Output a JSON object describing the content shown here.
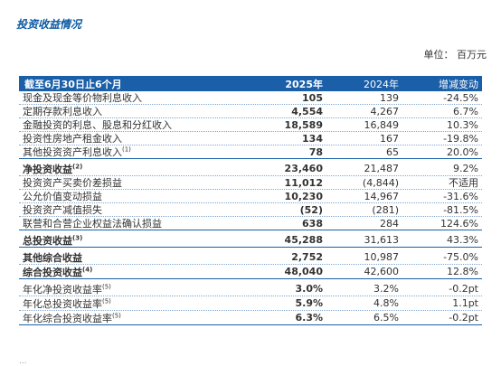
{
  "title": "投资收益情况",
  "unit": "单位： 百万元",
  "header": {
    "label": "截至6月30日止6个月",
    "y1": "2025年",
    "y2": "2024年",
    "chg": "增减变动"
  },
  "rows": [
    {
      "label": "现金及现金等价物利息收入",
      "note": "",
      "y1": "105",
      "y2": "139",
      "chg": "-24.5%"
    },
    {
      "label": "定期存款利息收入",
      "note": "",
      "y1": "4,554",
      "y2": "4,267",
      "chg": "6.7%"
    },
    {
      "label": "金融投资的利息、股息和分红收入",
      "note": "",
      "y1": "18,589",
      "y2": "16,849",
      "chg": "10.3%"
    },
    {
      "label": "投资性房地产租金收入",
      "note": "",
      "y1": "134",
      "y2": "167",
      "chg": "-19.8%"
    },
    {
      "label": "其他投资资产利息收入",
      "note": "(1)",
      "y1": "78",
      "y2": "65",
      "chg": "20.0%"
    },
    {
      "label": "净投资收益",
      "note": "(2)",
      "y1": "23,460",
      "y2": "21,487",
      "chg": "9.2%"
    },
    {
      "label": "投资资产买卖价差损益",
      "note": "",
      "y1": "11,012",
      "y2": "(4,844)",
      "chg": "不适用"
    },
    {
      "label": "公允价值变动损益",
      "note": "",
      "y1": "10,230",
      "y2": "14,967",
      "chg": "-31.6%"
    },
    {
      "label": "投资资产减值损失",
      "note": "",
      "y1": "(52)",
      "y2": "(281)",
      "chg": "-81.5%"
    },
    {
      "label": "联营和合营企业权益法确认损益",
      "note": "",
      "y1": "638",
      "y2": "284",
      "chg": "124.6%"
    },
    {
      "label": "总投资收益",
      "note": "(3)",
      "y1": "45,288",
      "y2": "31,613",
      "chg": "43.3%"
    },
    {
      "label": "其他综合收益",
      "note": "",
      "y1": "2,752",
      "y2": "10,987",
      "chg": "-75.0%"
    },
    {
      "label": "综合投资收益",
      "note": "(4)",
      "y1": "48,040",
      "y2": "42,600",
      "chg": "12.8%"
    },
    {
      "label": "年化净投资收益率",
      "note": "(5)",
      "y1": "3.0%",
      "y2": "3.2%",
      "chg": "-0.2pt"
    },
    {
      "label": "年化总投资收益率",
      "note": "(5)",
      "y1": "5.9%",
      "y2": "4.8%",
      "chg": "1.1pt"
    },
    {
      "label": "年化综合投资收益率",
      "note": "(5)",
      "y1": "6.3%",
      "y2": "6.5%",
      "chg": "-0.2pt"
    }
  ],
  "footer_mark": "..."
}
